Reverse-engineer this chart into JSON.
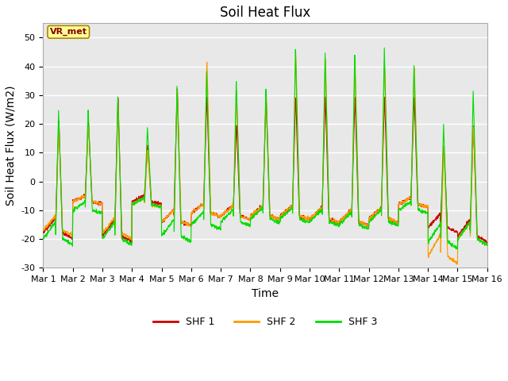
{
  "title": "Soil Heat Flux",
  "ylabel": "Soil Heat Flux (W/m2)",
  "xlabel": "Time",
  "ylim": [
    -30,
    55
  ],
  "yticks": [
    -30,
    -20,
    -10,
    0,
    10,
    20,
    30,
    40,
    50
  ],
  "xtick_labels": [
    "Mar 1",
    "Mar 2",
    "Mar 3",
    "Mar 4",
    "Mar 5",
    "Mar 6",
    "Mar 7",
    "Mar 8",
    "Mar 9",
    "Mar 10",
    "Mar 11",
    "Mar 12",
    "Mar 13",
    "Mar 14",
    "Mar 15",
    "Mar 16"
  ],
  "colors": {
    "SHF 1": "#cc0000",
    "SHF 2": "#ff9900",
    "SHF 3": "#00dd00"
  },
  "fig_bg": "#ffffff",
  "plot_bg": "#e8e8e8",
  "grid_color": "#ffffff",
  "n_days": 15,
  "points_per_day": 144,
  "title_fontsize": 12,
  "axis_label_fontsize": 10,
  "tick_fontsize": 8,
  "annotation_text": "VR_met",
  "annotation_color": "#880000",
  "annotation_bg": "#ffff99",
  "annotation_edge": "#aa8800"
}
